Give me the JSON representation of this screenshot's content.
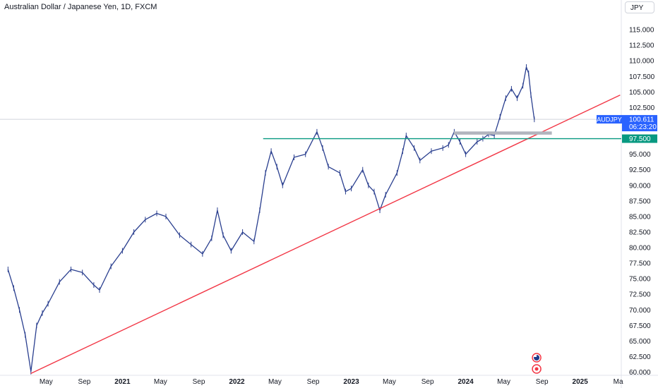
{
  "header": {
    "title": "Australian Dollar / Japanese Yen, 1D, FXCM",
    "currency": "JPY"
  },
  "price_tag": {
    "symbol": "AUDJPY",
    "price": "100.611",
    "countdown": "06:23:20",
    "color": "#2962ff"
  },
  "level_tag": {
    "label": "97.500",
    "color": "#089981"
  },
  "colors": {
    "candles": "#2a3f8f",
    "trendline": "#f23645",
    "support": "#089981",
    "zone": "#b2b5be"
  },
  "chart_data": {
    "type": "line",
    "title": "Australian Dollar / Japanese Yen, 1D, FXCM",
    "ylabel": "JPY",
    "ylim": [
      59.5,
      117.5
    ],
    "y_ticks": [
      "115.000",
      "112.500",
      "110.000",
      "107.500",
      "105.000",
      "102.500",
      "100.000",
      "97.500",
      "95.000",
      "92.500",
      "90.000",
      "87.500",
      "85.000",
      "82.500",
      "80.000",
      "77.500",
      "75.000",
      "72.500",
      "70.000",
      "67.500",
      "65.000",
      "62.500",
      "60.000"
    ],
    "x_ticks": [
      {
        "label": "May",
        "t": 2020.333,
        "bold": false
      },
      {
        "label": "Sep",
        "t": 2020.667,
        "bold": false
      },
      {
        "label": "2021",
        "t": 2021.0,
        "bold": true
      },
      {
        "label": "May",
        "t": 2021.333,
        "bold": false
      },
      {
        "label": "Sep",
        "t": 2021.667,
        "bold": false
      },
      {
        "label": "2022",
        "t": 2022.0,
        "bold": true
      },
      {
        "label": "May",
        "t": 2022.333,
        "bold": false
      },
      {
        "label": "Sep",
        "t": 2022.667,
        "bold": false
      },
      {
        "label": "2023",
        "t": 2023.0,
        "bold": true
      },
      {
        "label": "May",
        "t": 2023.333,
        "bold": false
      },
      {
        "label": "Sep",
        "t": 2023.667,
        "bold": false
      },
      {
        "label": "2024",
        "t": 2024.0,
        "bold": true
      },
      {
        "label": "May",
        "t": 2024.333,
        "bold": false
      },
      {
        "label": "Sep",
        "t": 2024.667,
        "bold": false
      },
      {
        "label": "2025",
        "t": 2025.0,
        "bold": true
      },
      {
        "label": "Ma",
        "t": 2025.333,
        "bold": false
      }
    ],
    "series": [
      {
        "values": [
          [
            2020.0,
            76.5
          ],
          [
            2020.05,
            73.5
          ],
          [
            2020.1,
            70.0
          ],
          [
            2020.15,
            66.0
          ],
          [
            2020.2,
            60.1
          ],
          [
            2020.25,
            67.5
          ],
          [
            2020.3,
            69.5
          ],
          [
            2020.35,
            71.0
          ],
          [
            2020.45,
            74.5
          ],
          [
            2020.55,
            76.5
          ],
          [
            2020.65,
            76.0
          ],
          [
            2020.75,
            74.0
          ],
          [
            2020.8,
            73.2
          ],
          [
            2020.9,
            77.0
          ],
          [
            2021.0,
            79.5
          ],
          [
            2021.1,
            82.5
          ],
          [
            2021.2,
            84.5
          ],
          [
            2021.3,
            85.5
          ],
          [
            2021.38,
            85.0
          ],
          [
            2021.5,
            82.0
          ],
          [
            2021.6,
            80.5
          ],
          [
            2021.7,
            79.0
          ],
          [
            2021.78,
            81.5
          ],
          [
            2021.83,
            86.0
          ],
          [
            2021.88,
            82.0
          ],
          [
            2021.95,
            79.5
          ],
          [
            2022.05,
            82.5
          ],
          [
            2022.15,
            81.0
          ],
          [
            2022.2,
            86.0
          ],
          [
            2022.25,
            92.0
          ],
          [
            2022.3,
            95.5
          ],
          [
            2022.35,
            93.0
          ],
          [
            2022.4,
            90.0
          ],
          [
            2022.5,
            94.5
          ],
          [
            2022.6,
            95.0
          ],
          [
            2022.7,
            98.6
          ],
          [
            2022.75,
            96.0
          ],
          [
            2022.8,
            93.0
          ],
          [
            2022.9,
            92.0
          ],
          [
            2022.95,
            89.0
          ],
          [
            2023.0,
            89.5
          ],
          [
            2023.1,
            92.5
          ],
          [
            2023.15,
            90.0
          ],
          [
            2023.2,
            89.0
          ],
          [
            2023.25,
            86.0
          ],
          [
            2023.3,
            88.5
          ],
          [
            2023.4,
            92.0
          ],
          [
            2023.45,
            95.5
          ],
          [
            2023.48,
            98.0
          ],
          [
            2023.55,
            96.0
          ],
          [
            2023.6,
            94.0
          ],
          [
            2023.7,
            95.5
          ],
          [
            2023.8,
            96.0
          ],
          [
            2023.85,
            96.5
          ],
          [
            2023.9,
            98.6
          ],
          [
            2023.95,
            97.0
          ],
          [
            2024.0,
            95.0
          ],
          [
            2024.1,
            97.0
          ],
          [
            2024.15,
            97.5
          ],
          [
            2024.2,
            98.2
          ],
          [
            2024.25,
            98.0
          ],
          [
            2024.3,
            101.0
          ],
          [
            2024.35,
            104.0
          ],
          [
            2024.4,
            105.5
          ],
          [
            2024.45,
            104.0
          ],
          [
            2024.5,
            106.0
          ],
          [
            2024.53,
            109.0
          ],
          [
            2024.55,
            108.0
          ],
          [
            2024.57,
            104.5
          ],
          [
            2024.6,
            100.6
          ]
        ]
      }
    ],
    "annotations": [
      {
        "kind": "trendline",
        "from": [
          2020.2,
          59.8
        ],
        "to": [
          2025.35,
          104.5
        ]
      },
      {
        "kind": "horizontal",
        "from_t": 2022.23,
        "to_t": 2025.35,
        "value": 97.5
      },
      {
        "kind": "zone",
        "from_t": 2023.9,
        "to_t": 2024.75,
        "low": 98.2,
        "high": 98.6
      },
      {
        "kind": "horizontal",
        "from_t": 2019.8,
        "to_t": 2025.35,
        "value": 100.611
      }
    ]
  }
}
